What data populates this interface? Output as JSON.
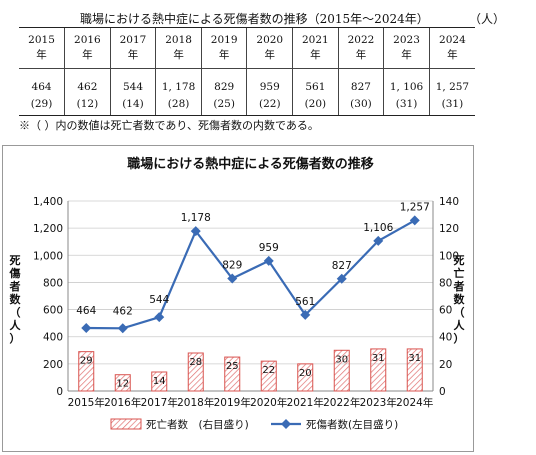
{
  "table": {
    "title": "職場における熱中症による死傷者数の推移（2015年～2024年）",
    "unit": "（人）",
    "years": [
      "2015",
      "2016",
      "2017",
      "2018",
      "2019",
      "2020",
      "2021",
      "2022",
      "2023",
      "2024"
    ],
    "year_suffix": "年",
    "casualties": [
      "464",
      "462",
      "544",
      "1, 178",
      "829",
      "959",
      "561",
      "827",
      "1, 106",
      "1, 257"
    ],
    "deaths": [
      "(29)",
      "(12)",
      "(14)",
      "(28)",
      "(25)",
      "(22)",
      "(20)",
      "(30)",
      "(31)",
      "(31)"
    ],
    "note": "※（ ）内の数値は死亡者数であり、死傷者数の内数である。"
  },
  "chart_data": {
    "type": "bar+line",
    "title": "職場における熱中症による死傷者数の推移",
    "categories": [
      "2015年",
      "2016年",
      "2017年",
      "2018年",
      "2019年",
      "2020年",
      "2021年",
      "2022年",
      "2023年",
      "2024年"
    ],
    "series": [
      {
        "name": "死亡者数　(右目盛り)",
        "type": "bar",
        "axis": "right",
        "values": [
          29,
          12,
          14,
          28,
          25,
          22,
          20,
          30,
          31,
          31
        ],
        "color": "#d9534f"
      },
      {
        "name": "死傷者数(左目盛り)",
        "type": "line",
        "axis": "left",
        "values": [
          464,
          462,
          544,
          1178,
          829,
          959,
          561,
          827,
          1106,
          1257
        ],
        "color": "#3a6bb5"
      }
    ],
    "line_labels": [
      "464",
      "462",
      "544",
      "1,178",
      "829",
      "959",
      "561",
      "827",
      "1,106",
      "1,257"
    ],
    "bar_labels": [
      "29",
      "12",
      "14",
      "28",
      "25",
      "22",
      "20",
      "30",
      "31",
      "31"
    ],
    "ylim_left": [
      0,
      1400
    ],
    "ylim_right": [
      0,
      140
    ],
    "yticks_left": [
      "0",
      "200",
      "400",
      "600",
      "800",
      "1,000",
      "1,200",
      "1,400"
    ],
    "yticks_right": [
      "0",
      "20",
      "40",
      "60",
      "80",
      "100",
      "120",
      "140"
    ],
    "ylabel_left": "死傷者数（人）",
    "ylabel_right": "死亡者数（人）",
    "legend_position": "bottom",
    "grid": true
  }
}
